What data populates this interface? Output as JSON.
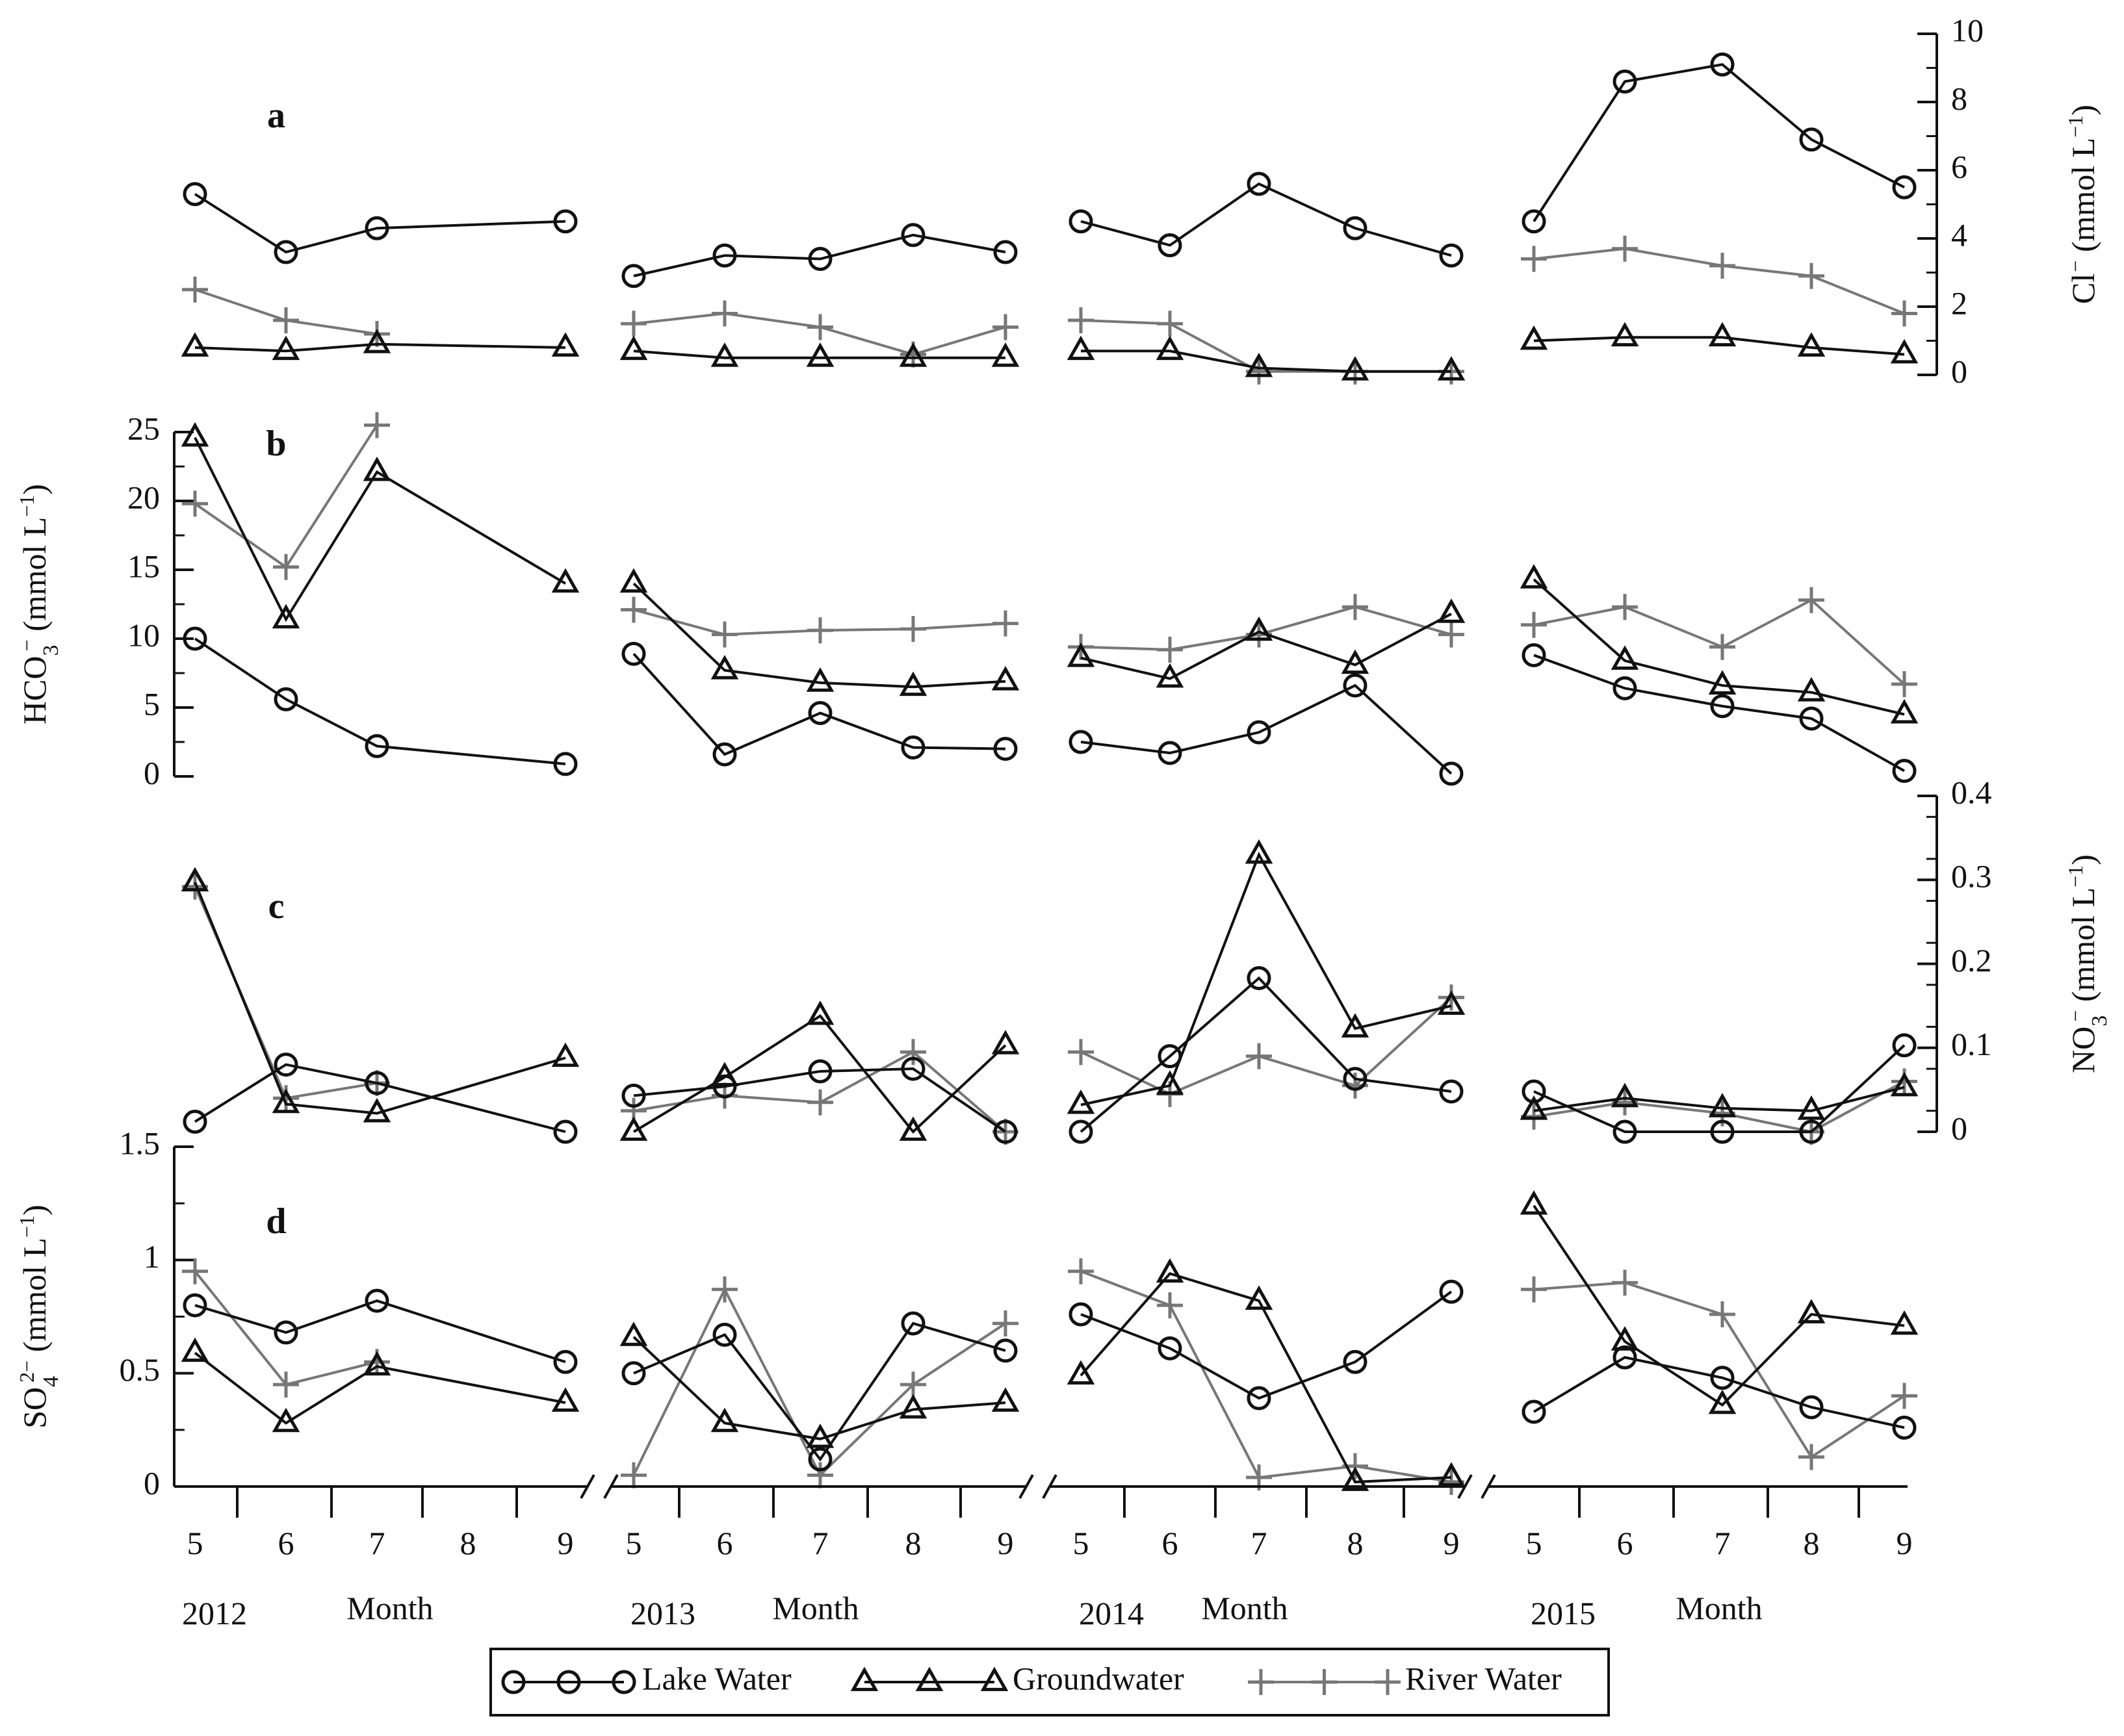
{
  "chart_data": {
    "type": "line",
    "months": [
      "5",
      "6",
      "7",
      "8",
      "9"
    ],
    "years": [
      "2012",
      "2013",
      "2014",
      "2015"
    ],
    "xlabel": "Month",
    "colors": {
      "lake": "#111111",
      "groundwater": "#111111",
      "river": "#777777"
    },
    "legend": [
      {
        "key": "lake",
        "label": "Lake Water",
        "marker": "circle"
      },
      {
        "key": "groundwater",
        "label": "Groundwater",
        "marker": "triangle"
      },
      {
        "key": "river",
        "label": "River Water",
        "marker": "plus"
      }
    ],
    "panels": [
      {
        "letter": "a",
        "axis_side": "right",
        "ylabel_main": "Cl",
        "ylabel_sup": "−",
        "ylabel_unit": "(mmol L",
        "ylabel_unit_sup": "−1",
        "ylabel_close": ")",
        "ylim": [
          0,
          10
        ],
        "yticks": [
          "0",
          "2",
          "4",
          "6",
          "8",
          "10"
        ],
        "series": {
          "lake": {
            "2012": [
              5.3,
              3.6,
              4.3,
              null,
              4.5
            ],
            "2013": [
              2.9,
              3.5,
              3.4,
              4.1,
              3.6
            ],
            "2014": [
              4.5,
              3.8,
              5.6,
              4.3,
              3.5
            ],
            "2015": [
              4.5,
              8.6,
              9.1,
              6.9,
              5.5
            ]
          },
          "groundwater": {
            "2012": [
              0.8,
              0.7,
              0.9,
              null,
              0.8
            ],
            "2013": [
              0.7,
              0.5,
              0.5,
              0.5,
              0.5
            ],
            "2014": [
              0.7,
              0.7,
              0.2,
              0.1,
              0.1
            ],
            "2015": [
              1.0,
              1.1,
              1.1,
              0.8,
              0.6
            ]
          },
          "river": {
            "2012": [
              2.5,
              1.6,
              1.2,
              null,
              null
            ],
            "2013": [
              1.5,
              1.8,
              1.4,
              0.6,
              1.4
            ],
            "2014": [
              1.6,
              1.5,
              0.1,
              0.1,
              0.1
            ],
            "2015": [
              3.4,
              3.7,
              3.2,
              2.9,
              1.8
            ]
          }
        }
      },
      {
        "letter": "b",
        "axis_side": "left",
        "ylabel_main": "HCO",
        "ylabel_sub": "3",
        "ylabel_sup": "−",
        "ylabel_unit": "(mmol L",
        "ylabel_unit_sup": "−1",
        "ylabel_close": ")",
        "ylim": [
          0,
          25
        ],
        "yticks": [
          "0",
          "5",
          "10",
          "15",
          "20",
          "25"
        ],
        "series": {
          "lake": {
            "2012": [
              10.0,
              5.6,
              2.2,
              null,
              0.9
            ],
            "2013": [
              8.9,
              1.6,
              4.6,
              2.1,
              2.0
            ],
            "2014": [
              2.5,
              1.7,
              3.2,
              6.6,
              0.2
            ],
            "2015": [
              8.8,
              6.4,
              5.1,
              4.2,
              0.4
            ]
          },
          "groundwater": {
            "2012": [
              24.6,
              11.4,
              22.1,
              null,
              14.0
            ],
            "2013": [
              14.0,
              7.7,
              6.8,
              6.5,
              6.9
            ],
            "2014": [
              8.6,
              7.1,
              10.5,
              8.1,
              11.8
            ],
            "2015": [
              14.3,
              8.4,
              6.6,
              6.1,
              4.5
            ]
          },
          "river": {
            "2012": [
              19.8,
              15.2,
              25.5,
              null,
              null
            ],
            "2013": [
              12.1,
              10.3,
              10.6,
              10.7,
              11.1
            ],
            "2014": [
              9.4,
              9.2,
              10.3,
              12.3,
              10.3
            ],
            "2015": [
              11.0,
              12.3,
              9.4,
              12.8,
              6.7
            ]
          }
        }
      },
      {
        "letter": "c",
        "axis_side": "right",
        "ylabel_main": "NO",
        "ylabel_sub": "3",
        "ylabel_sup": "−",
        "ylabel_unit": "(mmol L",
        "ylabel_unit_sup": "−1",
        "ylabel_close": ")",
        "ylim": [
          0,
          0.4
        ],
        "yticks": [
          "0",
          "0.1",
          "0.2",
          "0.3",
          "0.4"
        ],
        "series": {
          "lake": {
            "2012": [
              0.012,
              0.08,
              0.058,
              null,
              0.0
            ],
            "2013": [
              0.043,
              0.054,
              0.072,
              0.075,
              0.0
            ],
            "2014": [
              0.0,
              0.09,
              0.183,
              0.063,
              0.048
            ],
            "2015": [
              0.048,
              0.0,
              0.0,
              0.0,
              0.103
            ]
          },
          "groundwater": {
            "2012": [
              0.297,
              0.033,
              0.022,
              null,
              0.088
            ],
            "2013": [
              0.0,
              0.065,
              0.138,
              0.0,
              0.103
            ],
            "2014": [
              0.032,
              0.055,
              0.33,
              0.123,
              0.15
            ],
            "2015": [
              0.025,
              0.04,
              0.028,
              0.025,
              0.053
            ]
          },
          "river": {
            "2012": [
              0.292,
              0.04,
              0.058,
              null,
              null
            ],
            "2013": [
              0.025,
              0.043,
              0.035,
              0.095,
              0.0
            ],
            "2014": [
              0.095,
              0.045,
              0.09,
              0.055,
              0.16
            ],
            "2015": [
              0.018,
              0.035,
              0.022,
              0.0,
              0.06
            ]
          }
        }
      },
      {
        "letter": "d",
        "axis_side": "left",
        "ylabel_main": "SO",
        "ylabel_sub": "4",
        "ylabel_sup": "2−",
        "ylabel_unit": "(mmol L",
        "ylabel_unit_sup": "−1",
        "ylabel_close": ")",
        "ylim": [
          0,
          1.5
        ],
        "yticks": [
          "0",
          "0.5",
          "1",
          "1.5"
        ],
        "series": {
          "lake": {
            "2012": [
              0.8,
              0.68,
              0.82,
              null,
              0.55
            ],
            "2013": [
              0.5,
              0.67,
              0.12,
              0.72,
              0.6
            ],
            "2014": [
              0.76,
              0.61,
              0.39,
              0.55,
              0.86
            ],
            "2015": [
              0.33,
              0.57,
              0.48,
              0.35,
              0.26
            ]
          },
          "groundwater": {
            "2012": [
              0.59,
              0.28,
              0.53,
              null,
              0.37
            ],
            "2013": [
              0.66,
              0.28,
              0.21,
              0.34,
              0.37
            ],
            "2014": [
              0.49,
              0.94,
              0.82,
              0.02,
              0.04
            ],
            "2015": [
              1.24,
              0.64,
              0.36,
              0.76,
              0.71
            ]
          },
          "river": {
            "2012": [
              0.95,
              0.45,
              0.55,
              null,
              null
            ],
            "2013": [
              0.05,
              0.87,
              0.05,
              0.45,
              0.72
            ],
            "2014": [
              0.95,
              0.8,
              0.04,
              0.09,
              0.02
            ],
            "2015": [
              0.87,
              0.9,
              0.76,
              0.13,
              0.4
            ]
          }
        }
      }
    ]
  }
}
